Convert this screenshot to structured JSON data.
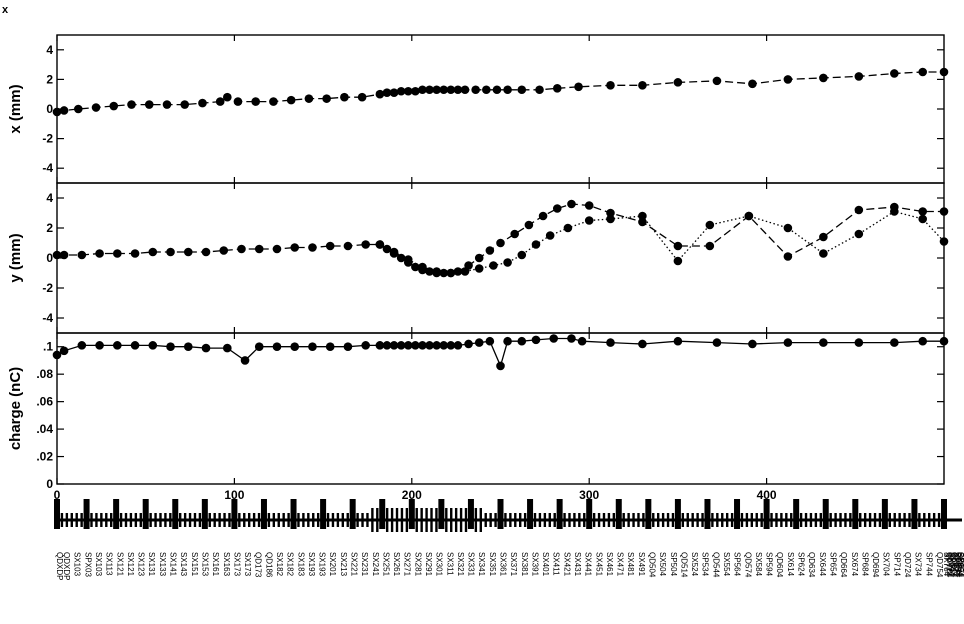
{
  "figure": {
    "corner_label": "x"
  },
  "chart_data": {
    "type": "line",
    "x_range": [
      0,
      500
    ],
    "x_ticks": [
      0,
      100,
      200,
      300,
      400
    ],
    "grid": false,
    "legend": "none",
    "panels": [
      {
        "ylabel": "x (mm)",
        "ylim": [
          -5,
          5
        ],
        "y_ticks": [
          -4,
          -2,
          0,
          2,
          4
        ],
        "series": [
          {
            "style": "dash",
            "marker": "circle",
            "points": [
              [
                0,
                -0.2
              ],
              [
                4,
                -0.1
              ],
              [
                12,
                0.0
              ],
              [
                22,
                0.1
              ],
              [
                32,
                0.2
              ],
              [
                42,
                0.3
              ],
              [
                52,
                0.3
              ],
              [
                62,
                0.3
              ],
              [
                72,
                0.3
              ],
              [
                82,
                0.4
              ],
              [
                92,
                0.5
              ],
              [
                96,
                0.8
              ],
              [
                102,
                0.5
              ],
              [
                112,
                0.5
              ],
              [
                122,
                0.5
              ],
              [
                132,
                0.6
              ],
              [
                142,
                0.7
              ],
              [
                152,
                0.7
              ],
              [
                162,
                0.8
              ],
              [
                172,
                0.8
              ],
              [
                182,
                1.0
              ],
              [
                186,
                1.1
              ],
              [
                190,
                1.1
              ],
              [
                194,
                1.2
              ],
              [
                198,
                1.2
              ],
              [
                202,
                1.2
              ],
              [
                206,
                1.3
              ],
              [
                210,
                1.3
              ],
              [
                214,
                1.3
              ],
              [
                218,
                1.3
              ],
              [
                222,
                1.3
              ],
              [
                226,
                1.3
              ],
              [
                230,
                1.3
              ],
              [
                236,
                1.3
              ],
              [
                242,
                1.3
              ],
              [
                248,
                1.3
              ],
              [
                254,
                1.3
              ],
              [
                262,
                1.3
              ],
              [
                272,
                1.3
              ],
              [
                282,
                1.4
              ],
              [
                294,
                1.5
              ],
              [
                312,
                1.6
              ],
              [
                330,
                1.6
              ],
              [
                350,
                1.8
              ],
              [
                372,
                1.9
              ],
              [
                392,
                1.7
              ],
              [
                412,
                2.0
              ],
              [
                432,
                2.1
              ],
              [
                452,
                2.2
              ],
              [
                472,
                2.4
              ],
              [
                488,
                2.5
              ],
              [
                500,
                2.5
              ]
            ]
          }
        ]
      },
      {
        "ylabel": "y (mm)",
        "ylim": [
          -5,
          5
        ],
        "y_ticks": [
          -4,
          -2,
          0,
          2,
          4
        ],
        "series": [
          {
            "style": "dash",
            "marker": "circle",
            "points": [
              [
                0,
                0.2
              ],
              [
                4,
                0.2
              ],
              [
                14,
                0.2
              ],
              [
                24,
                0.3
              ],
              [
                34,
                0.3
              ],
              [
                44,
                0.3
              ],
              [
                54,
                0.4
              ],
              [
                64,
                0.4
              ],
              [
                74,
                0.4
              ],
              [
                84,
                0.4
              ],
              [
                94,
                0.5
              ],
              [
                104,
                0.6
              ],
              [
                114,
                0.6
              ],
              [
                124,
                0.6
              ],
              [
                134,
                0.7
              ],
              [
                144,
                0.7
              ],
              [
                154,
                0.8
              ],
              [
                164,
                0.8
              ],
              [
                174,
                0.9
              ],
              [
                182,
                0.9
              ],
              [
                186,
                0.6
              ],
              [
                190,
                0.3
              ],
              [
                194,
                0.0
              ],
              [
                198,
                -0.3
              ],
              [
                202,
                -0.6
              ],
              [
                206,
                -0.8
              ],
              [
                210,
                -0.9
              ],
              [
                214,
                -1.0
              ],
              [
                218,
                -1.0
              ],
              [
                222,
                -1.0
              ],
              [
                226,
                -0.9
              ],
              [
                232,
                -0.5
              ],
              [
                238,
                0.0
              ],
              [
                244,
                0.5
              ],
              [
                250,
                1.0
              ],
              [
                258,
                1.6
              ],
              [
                266,
                2.2
              ],
              [
                274,
                2.8
              ],
              [
                282,
                3.3
              ],
              [
                290,
                3.6
              ],
              [
                300,
                3.5
              ],
              [
                312,
                3.0
              ],
              [
                330,
                2.4
              ],
              [
                350,
                0.8
              ],
              [
                368,
                0.8
              ],
              [
                390,
                2.8
              ],
              [
                412,
                0.1
              ],
              [
                432,
                1.4
              ],
              [
                452,
                3.2
              ],
              [
                472,
                3.4
              ],
              [
                488,
                3.1
              ],
              [
                500,
                3.1
              ]
            ]
          },
          {
            "style": "dot",
            "marker": "circle",
            "points": [
              [
                182,
                0.9
              ],
              [
                190,
                0.4
              ],
              [
                198,
                -0.1
              ],
              [
                206,
                -0.6
              ],
              [
                214,
                -0.9
              ],
              [
                222,
                -1.0
              ],
              [
                230,
                -0.9
              ],
              [
                238,
                -0.7
              ],
              [
                246,
                -0.5
              ],
              [
                254,
                -0.3
              ],
              [
                262,
                0.2
              ],
              [
                270,
                0.9
              ],
              [
                278,
                1.5
              ],
              [
                288,
                2.0
              ],
              [
                300,
                2.5
              ],
              [
                312,
                2.6
              ],
              [
                330,
                2.8
              ],
              [
                350,
                -0.2
              ],
              [
                368,
                2.2
              ],
              [
                390,
                2.8
              ],
              [
                412,
                2.0
              ],
              [
                432,
                0.3
              ],
              [
                452,
                1.6
              ],
              [
                472,
                3.1
              ],
              [
                488,
                2.6
              ],
              [
                500,
                1.1
              ]
            ]
          }
        ]
      },
      {
        "ylabel": "charge (nC)",
        "ylim": [
          0,
          0.11
        ],
        "y_ticks": [
          0,
          0.02,
          0.04,
          0.06,
          0.08,
          0.1
        ],
        "y_tick_labels": [
          "0",
          ".02",
          ".04",
          ".06",
          ".08",
          ".1"
        ],
        "series": [
          {
            "style": "solid",
            "marker": "circle",
            "points": [
              [
                0,
                0.094
              ],
              [
                4,
                0.097
              ],
              [
                14,
                0.101
              ],
              [
                24,
                0.101
              ],
              [
                34,
                0.101
              ],
              [
                44,
                0.101
              ],
              [
                54,
                0.101
              ],
              [
                64,
                0.1
              ],
              [
                74,
                0.1
              ],
              [
                84,
                0.099
              ],
              [
                96,
                0.099
              ],
              [
                106,
                0.09
              ],
              [
                114,
                0.1
              ],
              [
                124,
                0.1
              ],
              [
                134,
                0.1
              ],
              [
                144,
                0.1
              ],
              [
                154,
                0.1
              ],
              [
                164,
                0.1
              ],
              [
                174,
                0.101
              ],
              [
                182,
                0.101
              ],
              [
                186,
                0.101
              ],
              [
                190,
                0.101
              ],
              [
                194,
                0.101
              ],
              [
                198,
                0.101
              ],
              [
                202,
                0.101
              ],
              [
                206,
                0.101
              ],
              [
                210,
                0.101
              ],
              [
                214,
                0.101
              ],
              [
                218,
                0.101
              ],
              [
                222,
                0.101
              ],
              [
                226,
                0.101
              ],
              [
                232,
                0.102
              ],
              [
                238,
                0.103
              ],
              [
                244,
                0.104
              ],
              [
                250,
                0.086
              ],
              [
                254,
                0.104
              ],
              [
                262,
                0.104
              ],
              [
                270,
                0.105
              ],
              [
                280,
                0.106
              ],
              [
                290,
                0.106
              ],
              [
                296,
                0.104
              ],
              [
                312,
                0.103
              ],
              [
                330,
                0.102
              ],
              [
                350,
                0.104
              ],
              [
                372,
                0.103
              ],
              [
                392,
                0.102
              ],
              [
                412,
                0.103
              ],
              [
                432,
                0.103
              ],
              [
                452,
                0.103
              ],
              [
                472,
                0.103
              ],
              [
                488,
                0.104
              ],
              [
                500,
                0.104
              ]
            ]
          }
        ]
      }
    ],
    "beamline_labels": [
      "QDXDP",
      "QDXDP",
      "SX103",
      "SPX03",
      "SX103",
      "SX113",
      "SX121",
      "SX121",
      "SX123",
      "SX131",
      "SX133",
      "SX141",
      "SX143",
      "SX151",
      "SX153",
      "SX161",
      "SX163",
      "SX173",
      "SX173",
      "QD173",
      "QD186",
      "SX182",
      "SX182",
      "SX183",
      "SX193",
      "SX193",
      "SX201",
      "SX213",
      "SX221",
      "SX231",
      "SX241",
      "SX251",
      "SX261",
      "SX271",
      "SX281",
      "SX291",
      "SX301",
      "SX311",
      "SX321",
      "SX331",
      "SX341",
      "SX351",
      "SX361",
      "SX371",
      "SX381",
      "SX391",
      "SX401",
      "SX411",
      "SX421",
      "SX431",
      "SX441",
      "SX451",
      "SX461",
      "SX471",
      "SX481",
      "SX491",
      "QD504",
      "SX504",
      "SP504",
      "QD514",
      "SX524",
      "SP534",
      "QD544",
      "SX554",
      "SP564",
      "QD574",
      "SX584",
      "SP594",
      "QD604",
      "SX614",
      "SP624",
      "QD634",
      "SX644",
      "SP654",
      "QD664",
      "SX674",
      "SP684",
      "QD694",
      "SX704",
      "SP714",
      "QD724",
      "SX734",
      "SP744",
      "QD754",
      "SX764",
      "SP774",
      "QD784",
      "SX794",
      "SP804",
      "QD814",
      "SX824",
      "SP834",
      "QD844",
      "SX854",
      "SP864",
      "QD874"
    ],
    "beamline_label_x": [
      0,
      4,
      10,
      16,
      22,
      28,
      34,
      40,
      46,
      52,
      58,
      64,
      70,
      76,
      82,
      88,
      94,
      100,
      106,
      112,
      118,
      124,
      130,
      136,
      142,
      148,
      154,
      160,
      166,
      172,
      178,
      184,
      190,
      196,
      202,
      208,
      214,
      220,
      226,
      232,
      238,
      244,
      250,
      256,
      262,
      268,
      274,
      280,
      286,
      292,
      298,
      304,
      310,
      316,
      322,
      328,
      334,
      340,
      346,
      352,
      358,
      364,
      370,
      376,
      382,
      388,
      394,
      400,
      406,
      412,
      418,
      424,
      430,
      436,
      442,
      448,
      454,
      460,
      466,
      472,
      478,
      484,
      490,
      496,
      500,
      500,
      500,
      500,
      500,
      500,
      500,
      500,
      500,
      500,
      500,
      500
    ]
  }
}
